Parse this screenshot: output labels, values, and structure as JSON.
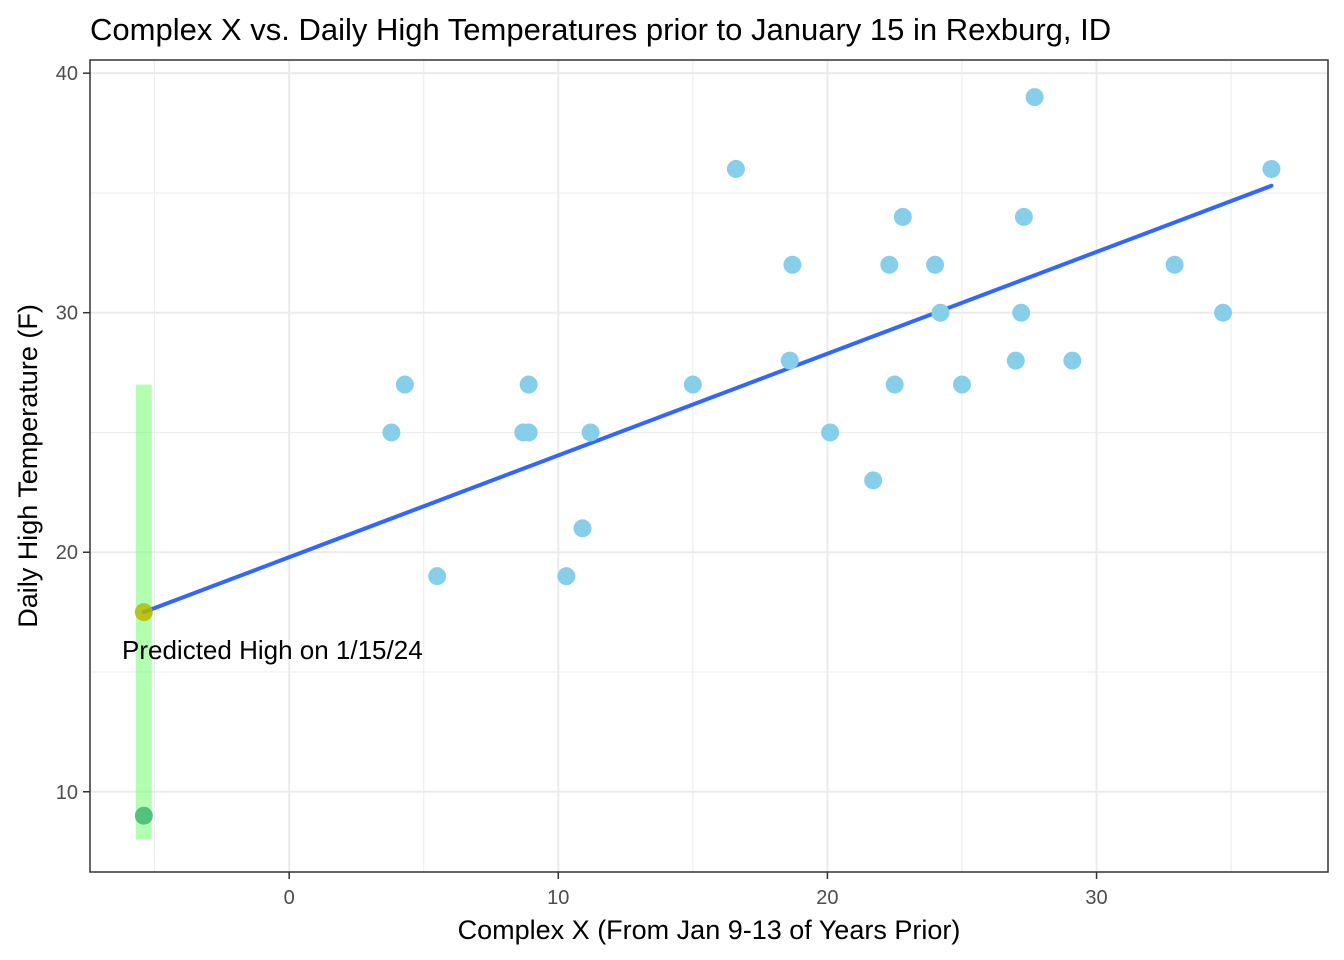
{
  "chart_data": {
    "type": "scatter",
    "title": "Complex X vs. Daily High Temperatures prior to January 15 in Rexburg, ID",
    "xlabel": "Complex X (From Jan 9-13 of Years Prior)",
    "ylabel": "Daily High Temperature (F)",
    "xlim": [
      -7.4,
      38.6
    ],
    "ylim": [
      6.65,
      40.55
    ],
    "x_ticks": [
      0,
      10,
      20,
      30
    ],
    "y_ticks": [
      10,
      20,
      30,
      40
    ],
    "grid": true,
    "points": [
      {
        "x": 3.8,
        "y": 25
      },
      {
        "x": 4.3,
        "y": 27
      },
      {
        "x": 5.5,
        "y": 19
      },
      {
        "x": 8.7,
        "y": 25
      },
      {
        "x": 8.9,
        "y": 25
      },
      {
        "x": 8.9,
        "y": 27
      },
      {
        "x": 10.3,
        "y": 19
      },
      {
        "x": 10.9,
        "y": 21
      },
      {
        "x": 11.2,
        "y": 25
      },
      {
        "x": 15.0,
        "y": 27
      },
      {
        "x": 16.6,
        "y": 36
      },
      {
        "x": 18.6,
        "y": 28
      },
      {
        "x": 18.7,
        "y": 32
      },
      {
        "x": 20.1,
        "y": 25
      },
      {
        "x": 21.7,
        "y": 23
      },
      {
        "x": 22.3,
        "y": 32
      },
      {
        "x": 22.5,
        "y": 27
      },
      {
        "x": 22.8,
        "y": 34
      },
      {
        "x": 24.0,
        "y": 32
      },
      {
        "x": 24.2,
        "y": 30
      },
      {
        "x": 25.0,
        "y": 27
      },
      {
        "x": 27.0,
        "y": 28
      },
      {
        "x": 27.2,
        "y": 30
      },
      {
        "x": 27.3,
        "y": 34
      },
      {
        "x": 27.7,
        "y": 39
      },
      {
        "x": 29.1,
        "y": 28
      },
      {
        "x": 32.9,
        "y": 32
      },
      {
        "x": 34.7,
        "y": 30
      },
      {
        "x": 36.5,
        "y": 36
      }
    ],
    "fit_line": {
      "x": [
        -5.4,
        36.5
      ],
      "y": [
        17.5,
        35.3
      ]
    },
    "prediction": {
      "x": -5.4,
      "y": 17.5,
      "interval": [
        8.0,
        27.0
      ],
      "observed": 9.0,
      "label": "Predicted High on 1/15/24"
    },
    "colors": {
      "point": "#87CEEB",
      "line": "#3366FF",
      "interval": "#66FF66",
      "predicted_point": "#B8B800",
      "observed_point": "#3CB371",
      "grid": "#EBEBEB",
      "frame": "#333333"
    }
  }
}
